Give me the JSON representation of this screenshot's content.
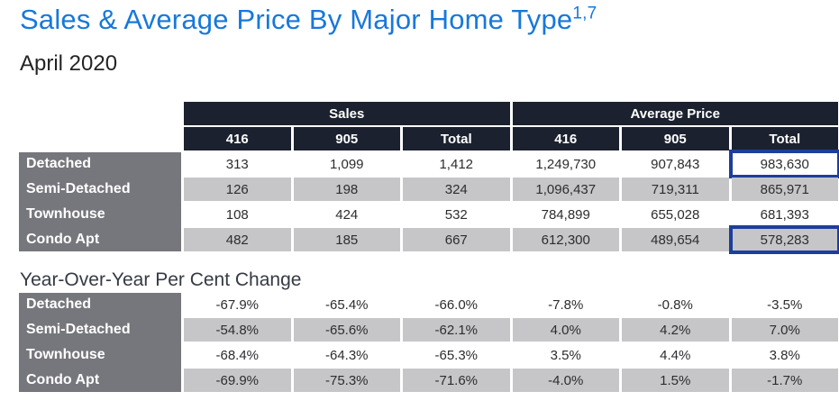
{
  "page": {
    "title": "Sales & Average Price By Major Home Type",
    "title_superscript": "1,7",
    "subtitle": "April 2020",
    "yoy_section_title": "Year-Over-Year Per Cent Change"
  },
  "colors": {
    "title_blue": "#1778db",
    "header_dark_navy": "#1b212e",
    "row_label_gray": "#76777c",
    "alt_row_gray": "#c6c6c8",
    "highlight_box_blue": "#1c3e9c"
  },
  "table1": {
    "group_headers": [
      "Sales",
      "Average Price"
    ],
    "col_headers": [
      "416",
      "905",
      "Total",
      "416",
      "905",
      "Total"
    ],
    "rows": [
      {
        "label": "Detached",
        "cells": [
          "313",
          "1,099",
          "1,412",
          "1,249,730",
          "907,843",
          "983,630"
        ]
      },
      {
        "label": "Semi-Detached",
        "cells": [
          "126",
          "198",
          "324",
          "1,096,437",
          "719,311",
          "865,971"
        ]
      },
      {
        "label": "Townhouse",
        "cells": [
          "108",
          "424",
          "532",
          "784,899",
          "655,028",
          "681,393"
        ]
      },
      {
        "label": "Condo Apt",
        "cells": [
          "482",
          "185",
          "667",
          "612,300",
          "489,654",
          "578,283"
        ]
      }
    ],
    "highlighted_cells": [
      {
        "row": 0,
        "col": 5
      },
      {
        "row": 3,
        "col": 5
      }
    ]
  },
  "table2": {
    "rows": [
      {
        "label": "Detached",
        "cells": [
          "-67.9%",
          "-65.4%",
          "-66.0%",
          "-7.8%",
          "-0.8%",
          "-3.5%"
        ]
      },
      {
        "label": "Semi-Detached",
        "cells": [
          "-54.8%",
          "-65.6%",
          "-62.1%",
          "4.0%",
          "4.2%",
          "7.0%"
        ]
      },
      {
        "label": "Townhouse",
        "cells": [
          "-68.4%",
          "-64.3%",
          "-65.3%",
          "3.5%",
          "4.4%",
          "3.8%"
        ]
      },
      {
        "label": "Condo Apt",
        "cells": [
          "-69.9%",
          "-75.3%",
          "-71.6%",
          "-4.0%",
          "1.5%",
          "-1.7%"
        ]
      }
    ]
  },
  "chart_data": {
    "type": "table",
    "title": "Sales & Average Price By Major Home Type",
    "subtitle": "April 2020",
    "tables": [
      {
        "name": "Sales & Average Price",
        "column_groups": [
          "Sales",
          "Average Price"
        ],
        "columns": [
          "Sales 416",
          "Sales 905",
          "Sales Total",
          "Average Price 416",
          "Average Price 905",
          "Average Price Total"
        ],
        "row_labels": [
          "Detached",
          "Semi-Detached",
          "Townhouse",
          "Condo Apt"
        ],
        "values": [
          [
            313,
            1099,
            1412,
            1249730,
            907843,
            983630
          ],
          [
            126,
            198,
            324,
            1096437,
            719311,
            865971
          ],
          [
            108,
            424,
            532,
            784899,
            655028,
            681393
          ],
          [
            482,
            185,
            667,
            612300,
            489654,
            578283
          ]
        ],
        "highlighted_values": [
          983630,
          578283
        ]
      },
      {
        "name": "Year-Over-Year Per Cent Change",
        "columns": [
          "Sales 416",
          "Sales 905",
          "Sales Total",
          "Average Price 416",
          "Average Price 905",
          "Average Price Total"
        ],
        "row_labels": [
          "Detached",
          "Semi-Detached",
          "Townhouse",
          "Condo Apt"
        ],
        "values_percent": [
          [
            -67.9,
            -65.4,
            -66.0,
            -7.8,
            -0.8,
            -3.5
          ],
          [
            -54.8,
            -65.6,
            -62.1,
            4.0,
            4.2,
            7.0
          ],
          [
            -68.4,
            -64.3,
            -65.3,
            3.5,
            4.4,
            3.8
          ],
          [
            -69.9,
            -75.3,
            -71.6,
            -4.0,
            1.5,
            -1.7
          ]
        ]
      }
    ]
  }
}
